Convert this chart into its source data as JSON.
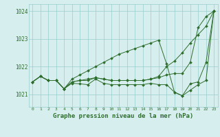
{
  "title": "Graphe pression niveau de la mer (hPa)",
  "background_color": "#d7eeee",
  "grid_color": "#99cccc",
  "line_color": "#2d6e2d",
  "x_labels": [
    "0",
    "1",
    "2",
    "3",
    "4",
    "5",
    "6",
    "7",
    "8",
    "9",
    "10",
    "11",
    "12",
    "13",
    "14",
    "15",
    "16",
    "17",
    "18",
    "19",
    "20",
    "21",
    "22",
    "23"
  ],
  "ylim": [
    1020.55,
    1024.25
  ],
  "yticks": [
    1021,
    1022,
    1023,
    1024
  ],
  "series": [
    [
      1021.45,
      1021.65,
      1021.5,
      1021.5,
      1021.2,
      1021.4,
      1021.38,
      1021.35,
      1021.55,
      1021.4,
      1021.35,
      1021.35,
      1021.35,
      1021.35,
      1021.35,
      1021.4,
      1021.35,
      1021.35,
      1021.08,
      1020.95,
      1021.15,
      1021.35,
      1021.5,
      1024.0
    ],
    [
      1021.45,
      1021.65,
      1021.5,
      1021.5,
      1021.2,
      1021.55,
      1021.7,
      1021.85,
      1022.0,
      1022.15,
      1022.3,
      1022.45,
      1022.55,
      1022.65,
      1022.75,
      1022.85,
      1022.95,
      1022.1,
      1021.08,
      1020.95,
      1021.38,
      1021.45,
      1022.15,
      1024.0
    ],
    [
      1021.45,
      1021.65,
      1021.5,
      1021.5,
      1021.2,
      1021.45,
      1021.5,
      1021.5,
      1021.6,
      1021.55,
      1021.5,
      1021.5,
      1021.5,
      1021.5,
      1021.5,
      1021.55,
      1021.6,
      1021.7,
      1021.75,
      1021.75,
      1022.15,
      1023.4,
      1023.8,
      1024.0
    ],
    [
      1021.45,
      1021.65,
      1021.5,
      1021.5,
      1021.2,
      1021.45,
      1021.5,
      1021.55,
      1021.6,
      1021.55,
      1021.5,
      1021.5,
      1021.5,
      1021.5,
      1021.5,
      1021.55,
      1021.65,
      1022.0,
      1022.2,
      1022.5,
      1022.85,
      1023.15,
      1023.45,
      1024.0
    ]
  ]
}
